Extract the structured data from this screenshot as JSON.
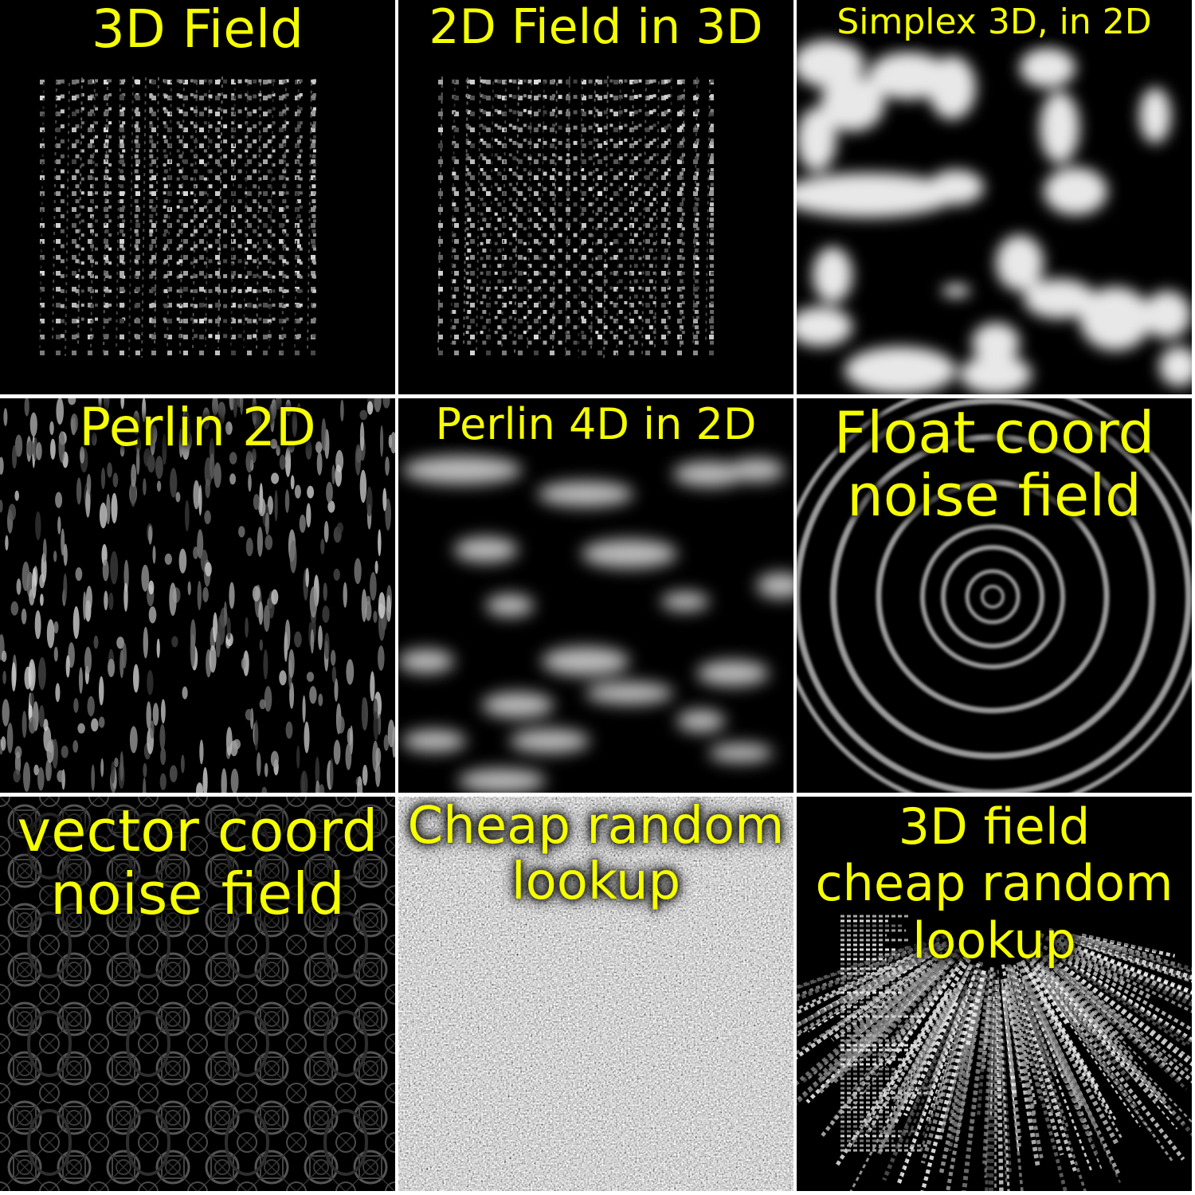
{
  "title_color": "#f5ff00",
  "tiles": [
    {
      "lines": [
        "3D Field"
      ],
      "icon": "dot-grid-perspective"
    },
    {
      "lines": [
        "2D Field in 3D"
      ],
      "icon": "dot-grid-perspective"
    },
    {
      "lines": [
        "Simplex 3D, in 2D"
      ],
      "icon": "simplex-blobs"
    },
    {
      "lines": [
        "Perlin 2D"
      ],
      "icon": "vertical-streaks"
    },
    {
      "lines": [
        "Perlin 4D in 2D"
      ],
      "icon": "smooth-waves"
    },
    {
      "lines": [
        "Float coord",
        "noise field"
      ],
      "icon": "concentric-rings"
    },
    {
      "lines": [
        "vector coord",
        "noise field"
      ],
      "icon": "interference-pattern"
    },
    {
      "lines": [
        "Cheap random",
        "lookup"
      ],
      "icon": "static-noise"
    },
    {
      "lines": [
        "3D field",
        "cheap random",
        "lookup"
      ],
      "icon": "radial-streaks"
    }
  ]
}
